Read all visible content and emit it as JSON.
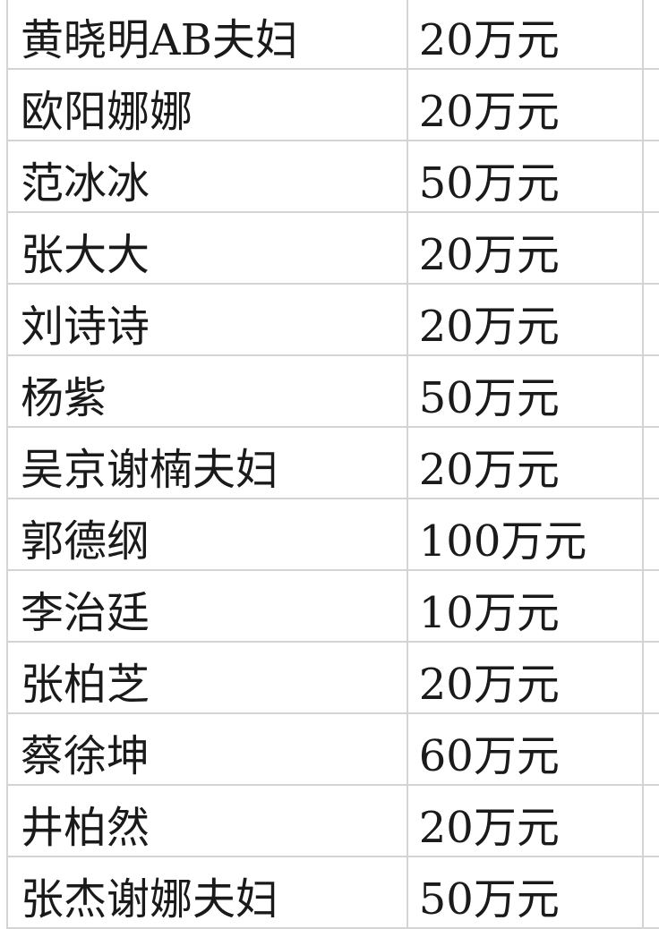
{
  "rows": [
    {
      "name": "黄晓明AB夫妇",
      "amount": "20万元"
    },
    {
      "name": "欧阳娜娜",
      "amount": "20万元"
    },
    {
      "name": "范冰冰",
      "amount": "50万元"
    },
    {
      "name": "张大大",
      "amount": "20万元"
    },
    {
      "name": "刘诗诗",
      "amount": "20万元"
    },
    {
      "name": "杨紫",
      "amount": "50万元"
    },
    {
      "name": "吴京谢楠夫妇",
      "amount": "20万元"
    },
    {
      "name": "郭德纲",
      "amount": "100万元"
    },
    {
      "name": "李治廷",
      "amount": "10万元"
    },
    {
      "name": "张柏芝",
      "amount": "20万元"
    },
    {
      "name": "蔡徐坤",
      "amount": "60万元"
    },
    {
      "name": "井柏然",
      "amount": "20万元"
    },
    {
      "name": "张杰谢娜夫妇",
      "amount": "50万元"
    }
  ]
}
